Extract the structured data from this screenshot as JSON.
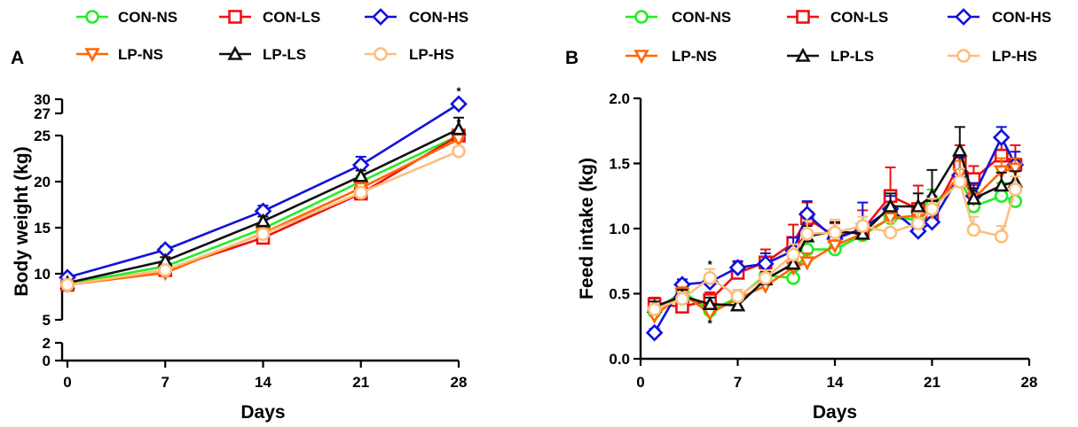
{
  "legend_items": [
    {
      "name": "CON-NS",
      "color": "#22ee22",
      "marker": "circle"
    },
    {
      "name": "CON-LS",
      "color": "#ee1111",
      "marker": "square"
    },
    {
      "name": "CON-HS",
      "color": "#1111dd",
      "marker": "diamond"
    },
    {
      "name": "LP-NS",
      "color": "#ff6600",
      "marker": "triangle-down"
    },
    {
      "name": "LP-LS",
      "color": "#111111",
      "marker": "triangle-up"
    },
    {
      "name": "LP-HS",
      "color": "#fbbf7e",
      "marker": "circle"
    }
  ],
  "chart_data": [
    {
      "panel": "A",
      "type": "line",
      "xlabel": "Days",
      "ylabel": "Body weight (kg)",
      "xlim": [
        0,
        28
      ],
      "xticks": [
        0,
        7,
        14,
        21,
        28
      ],
      "ylim_lower": [
        0,
        2
      ],
      "ylim_middle": [
        5,
        25
      ],
      "ylim_upper": [
        27,
        30
      ],
      "yticks_lower": [
        0,
        2
      ],
      "yticks_middle": [
        5,
        10,
        15,
        20,
        25
      ],
      "yticks_upper": [
        27,
        30
      ],
      "grid": false,
      "legend_position": "top",
      "x": [
        0,
        7,
        14,
        21,
        28
      ],
      "series": [
        {
          "name": "CON-NS",
          "values": [
            8.9,
            10.8,
            14.9,
            20.0,
            25.0
          ],
          "errors": [
            0.3,
            0.4,
            0.5,
            0.6,
            0.4
          ]
        },
        {
          "name": "CON-LS",
          "values": [
            8.8,
            10.4,
            13.9,
            18.7,
            25.0
          ],
          "errors": [
            0.3,
            0.4,
            0.5,
            0.5,
            0.4
          ]
        },
        {
          "name": "CON-HS",
          "values": [
            9.6,
            12.6,
            16.8,
            21.8,
            29.0
          ],
          "errors": [
            0.3,
            0.4,
            0.6,
            0.9,
            0.5
          ]
        },
        {
          "name": "LP-NS",
          "values": [
            8.8,
            10.1,
            14.4,
            19.3,
            24.6
          ],
          "errors": [
            0.3,
            0.4,
            0.5,
            0.5,
            0.4
          ]
        },
        {
          "name": "LP-LS",
          "values": [
            9.0,
            11.4,
            15.7,
            20.6,
            25.7
          ],
          "errors": [
            0.3,
            0.4,
            0.5,
            0.6,
            0.4
          ]
        },
        {
          "name": "LP-HS",
          "values": [
            8.8,
            10.4,
            14.3,
            18.8,
            23.3
          ],
          "errors": [
            0.3,
            0.4,
            0.5,
            0.5,
            0.4
          ]
        }
      ],
      "annotations": [
        {
          "text": "*",
          "x": 28,
          "y": 29.0
        },
        {
          "text": "*",
          "x": 28,
          "y": 25.0
        }
      ]
    },
    {
      "panel": "B",
      "type": "line",
      "xlabel": "Days",
      "ylabel": "Feed intake (kg)",
      "xlim": [
        0,
        28
      ],
      "ylim": [
        0,
        2.0
      ],
      "xticks": [
        0,
        7,
        14,
        21,
        28
      ],
      "yticks": [
        0.0,
        0.5,
        1.0,
        1.5,
        2.0
      ],
      "grid": false,
      "legend_position": "top",
      "x": [
        1,
        3,
        5,
        7,
        9,
        11,
        12,
        14,
        16,
        18,
        20,
        21,
        23,
        24,
        26,
        27
      ],
      "series": [
        {
          "name": "CON-NS",
          "values": [
            0.36,
            0.52,
            0.37,
            0.47,
            0.64,
            0.62,
            0.84,
            0.84,
            0.95,
            1.08,
            1.07,
            1.18,
            1.38,
            1.17,
            1.25,
            1.21
          ],
          "errors": [
            0.05,
            0.05,
            0.05,
            0.06,
            0.06,
            0.06,
            0.07,
            0.06,
            0.07,
            0.08,
            0.08,
            0.12,
            0.1,
            0.08,
            0.1,
            0.08
          ]
        },
        {
          "name": "CON-LS",
          "values": [
            0.42,
            0.4,
            0.45,
            0.66,
            0.74,
            0.89,
            1.08,
            0.94,
            0.99,
            1.25,
            1.15,
            1.1,
            1.5,
            1.38,
            1.56,
            1.49
          ],
          "errors": [
            0.05,
            0.04,
            0.06,
            0.08,
            0.1,
            0.14,
            0.12,
            0.1,
            0.15,
            0.22,
            0.18,
            0.15,
            0.14,
            0.1,
            0.12,
            0.15
          ]
        },
        {
          "name": "CON-HS",
          "values": [
            0.2,
            0.57,
            0.59,
            0.7,
            0.73,
            0.83,
            1.11,
            0.92,
            1.0,
            1.15,
            0.98,
            1.05,
            1.41,
            1.25,
            1.7,
            1.49
          ],
          "errors": [
            0.03,
            0.04,
            0.05,
            0.05,
            0.08,
            0.1,
            0.1,
            0.06,
            0.2,
            0.1,
            0.05,
            0.08,
            0.14,
            0.1,
            0.08,
            0.1
          ]
        },
        {
          "name": "LP-NS",
          "values": [
            0.33,
            0.5,
            0.35,
            0.46,
            0.56,
            0.7,
            0.74,
            0.87,
            0.96,
            1.08,
            1.1,
            1.13,
            1.42,
            1.23,
            1.44,
            1.46
          ],
          "errors": [
            0.04,
            0.05,
            0.05,
            0.05,
            0.06,
            0.06,
            0.07,
            0.07,
            0.07,
            0.08,
            0.08,
            0.08,
            0.1,
            0.08,
            0.1,
            0.08
          ]
        },
        {
          "name": "LP-LS",
          "values": [
            0.4,
            0.48,
            0.42,
            0.41,
            0.61,
            0.73,
            0.94,
            0.98,
            0.96,
            1.17,
            1.17,
            1.25,
            1.6,
            1.23,
            1.33,
            1.36
          ],
          "errors": [
            0.04,
            0.05,
            0.05,
            0.05,
            0.06,
            0.08,
            0.08,
            0.07,
            0.07,
            0.1,
            0.1,
            0.2,
            0.18,
            0.08,
            0.1,
            0.08
          ]
        },
        {
          "name": "LP-HS",
          "values": [
            0.38,
            0.46,
            0.62,
            0.48,
            0.62,
            0.8,
            0.96,
            0.97,
            1.02,
            0.97,
            1.04,
            1.15,
            1.36,
            0.99,
            0.94,
            1.3
          ],
          "errors": [
            0.04,
            0.05,
            0.07,
            0.05,
            0.06,
            0.08,
            0.1,
            0.1,
            0.07,
            0.08,
            0.08,
            0.08,
            0.1,
            0.1,
            0.08,
            0.1
          ]
        }
      ],
      "annotations": [
        {
          "text": "*",
          "x": 5,
          "y": 0.72
        },
        {
          "text": "*",
          "x": 5,
          "y": 0.27
        }
      ]
    }
  ]
}
